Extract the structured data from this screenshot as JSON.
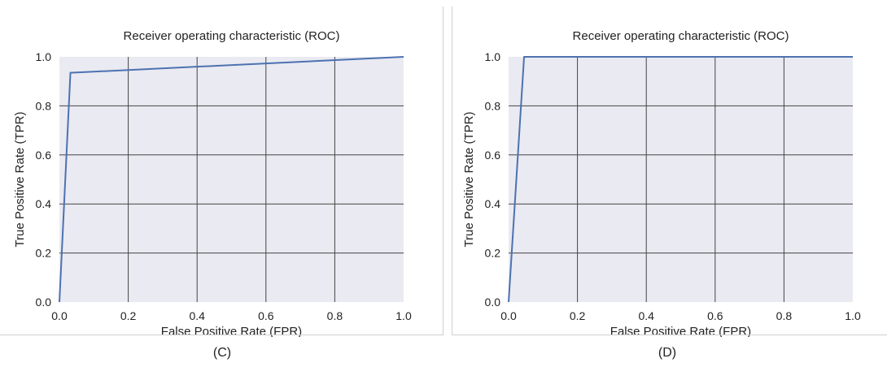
{
  "chart_data": [
    {
      "type": "line",
      "title": "Receiver operating characteristic (ROC)",
      "xlabel": "False Positive Rate (FPR)",
      "ylabel": "True Positive Rate (TPR)",
      "xlim": [
        0,
        1
      ],
      "ylim": [
        0,
        1
      ],
      "xticks": [
        "0.0",
        "0.2",
        "0.4",
        "0.6",
        "0.8",
        "1.0"
      ],
      "yticks": [
        "0.0",
        "0.2",
        "0.4",
        "0.6",
        "0.8",
        "1.0"
      ],
      "grid": true,
      "series": [
        {
          "x": [
            0.0,
            0.032,
            1.0
          ],
          "y": [
            0.0,
            0.935,
            1.0
          ]
        }
      ],
      "caption": "(C)"
    },
    {
      "type": "line",
      "title": "Receiver operating characteristic (ROC)",
      "xlabel": "False Positive Rate (FPR)",
      "ylabel": "True Positive Rate (TPR)",
      "xlim": [
        0,
        1
      ],
      "ylim": [
        0,
        1
      ],
      "xticks": [
        "0.0",
        "0.2",
        "0.4",
        "0.6",
        "0.8",
        "1.0"
      ],
      "yticks": [
        "0.0",
        "0.2",
        "0.4",
        "0.6",
        "0.8",
        "1.0"
      ],
      "grid": true,
      "series": [
        {
          "x": [
            0.0,
            0.045,
            1.0
          ],
          "y": [
            0.0,
            1.0,
            1.0
          ]
        }
      ],
      "caption": "(D)"
    }
  ],
  "colors": {
    "plot_bg": "#eaeaf2",
    "line": "#4c72b0",
    "grid": "#444444"
  }
}
